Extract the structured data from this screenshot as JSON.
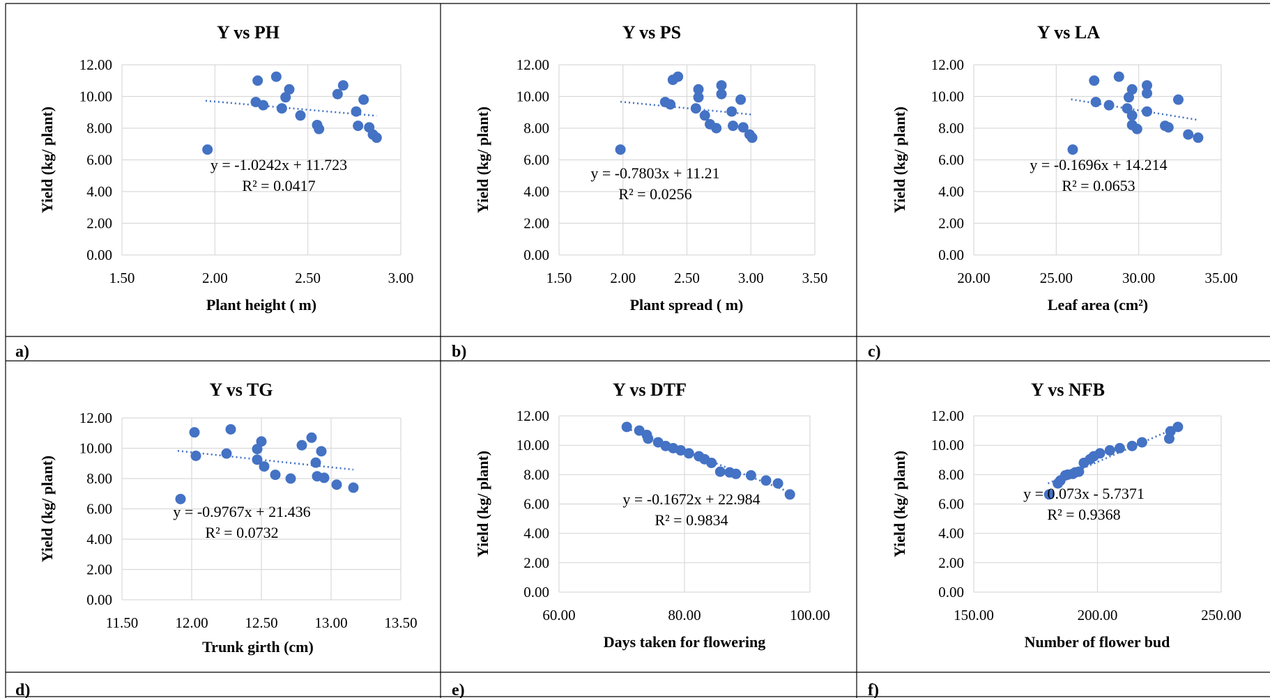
{
  "chart_data": [
    {
      "type": "scatter",
      "panel_label": "a)",
      "title": "Y vs PH",
      "xlabel": "Plant height (  m)",
      "ylabel": "Yield (kg/ plant)",
      "xlim": [
        1.5,
        3.0
      ],
      "ylim": [
        0,
        12
      ],
      "xticks": [
        "1.50",
        "2.00",
        "2.50",
        "3.00"
      ],
      "yticks": [
        "0.00",
        "2.00",
        "4.00",
        "6.00",
        "8.00",
        "10.00",
        "12.00"
      ],
      "points": [
        {
          "x": 1.96,
          "y": 6.65
        },
        {
          "x": 2.22,
          "y": 9.65
        },
        {
          "x": 2.23,
          "y": 11.0
        },
        {
          "x": 2.26,
          "y": 9.45
        },
        {
          "x": 2.33,
          "y": 11.25
        },
        {
          "x": 2.36,
          "y": 9.25
        },
        {
          "x": 2.38,
          "y": 9.95
        },
        {
          "x": 2.4,
          "y": 10.45
        },
        {
          "x": 2.46,
          "y": 8.8
        },
        {
          "x": 2.55,
          "y": 8.2
        },
        {
          "x": 2.56,
          "y": 7.95
        },
        {
          "x": 2.66,
          "y": 10.15
        },
        {
          "x": 2.69,
          "y": 10.7
        },
        {
          "x": 2.76,
          "y": 9.05
        },
        {
          "x": 2.77,
          "y": 8.15
        },
        {
          "x": 2.8,
          "y": 9.8
        },
        {
          "x": 2.83,
          "y": 8.05
        },
        {
          "x": 2.85,
          "y": 7.6
        },
        {
          "x": 2.87,
          "y": 7.4
        }
      ],
      "trendline": {
        "x": [
          1.95,
          2.87
        ],
        "y": [
          9.73,
          8.78
        ]
      },
      "equation": "y = -1.0242x + 11.723",
      "r2_label": "R² = 0.0417"
    },
    {
      "type": "scatter",
      "panel_label": "b)",
      "title": "Y vs PS",
      "xlabel": "Plant spread (  m)",
      "ylabel": "Yield (kg/ plant)",
      "xlim": [
        1.5,
        3.5
      ],
      "ylim": [
        0,
        12
      ],
      "xticks": [
        "1.50",
        "2.00",
        "2.50",
        "3.00",
        "3.50"
      ],
      "yticks": [
        "0.00",
        "2.00",
        "4.00",
        "6.00",
        "8.00",
        "10.00",
        "12.00"
      ],
      "points": [
        {
          "x": 1.98,
          "y": 6.65
        },
        {
          "x": 2.33,
          "y": 9.65
        },
        {
          "x": 2.37,
          "y": 9.5
        },
        {
          "x": 2.39,
          "y": 11.05
        },
        {
          "x": 2.43,
          "y": 11.25
        },
        {
          "x": 2.57,
          "y": 9.25
        },
        {
          "x": 2.59,
          "y": 9.95
        },
        {
          "x": 2.59,
          "y": 10.45
        },
        {
          "x": 2.64,
          "y": 8.8
        },
        {
          "x": 2.68,
          "y": 8.25
        },
        {
          "x": 2.73,
          "y": 8.0
        },
        {
          "x": 2.77,
          "y": 10.15
        },
        {
          "x": 2.77,
          "y": 10.7
        },
        {
          "x": 2.85,
          "y": 9.05
        },
        {
          "x": 2.86,
          "y": 8.15
        },
        {
          "x": 2.92,
          "y": 9.8
        },
        {
          "x": 2.94,
          "y": 8.05
        },
        {
          "x": 2.99,
          "y": 7.6
        },
        {
          "x": 3.01,
          "y": 7.4
        }
      ],
      "trendline": {
        "x": [
          1.98,
          3.02
        ],
        "y": [
          9.67,
          8.85
        ]
      },
      "equation": "y = -0.7803x + 11.21",
      "r2_label": "R² = 0.0256"
    },
    {
      "type": "scatter",
      "panel_label": "c)",
      "title": "Y vs LA",
      "xlabel": "Leaf area (cm²)",
      "ylabel": "Yield (kg/ plant)",
      "xlim": [
        20,
        35
      ],
      "ylim": [
        0,
        12
      ],
      "xticks": [
        "20.00",
        "25.00",
        "30.00",
        "35.00"
      ],
      "yticks": [
        "0.00",
        "2.00",
        "4.00",
        "6.00",
        "8.00",
        "10.00",
        "12.00"
      ],
      "points": [
        {
          "x": 26.0,
          "y": 6.65
        },
        {
          "x": 27.3,
          "y": 11.0
        },
        {
          "x": 27.4,
          "y": 9.65
        },
        {
          "x": 28.2,
          "y": 9.45
        },
        {
          "x": 28.8,
          "y": 11.25
        },
        {
          "x": 29.3,
          "y": 9.25
        },
        {
          "x": 29.4,
          "y": 9.95
        },
        {
          "x": 29.6,
          "y": 10.45
        },
        {
          "x": 29.6,
          "y": 8.8
        },
        {
          "x": 29.6,
          "y": 8.2
        },
        {
          "x": 29.9,
          "y": 7.95
        },
        {
          "x": 30.5,
          "y": 10.2
        },
        {
          "x": 30.5,
          "y": 10.7
        },
        {
          "x": 30.5,
          "y": 9.05
        },
        {
          "x": 31.6,
          "y": 8.15
        },
        {
          "x": 31.8,
          "y": 8.05
        },
        {
          "x": 32.4,
          "y": 9.8
        },
        {
          "x": 33.0,
          "y": 7.6
        },
        {
          "x": 33.6,
          "y": 7.4
        }
      ],
      "trendline": {
        "x": [
          25.9,
          33.6
        ],
        "y": [
          9.82,
          8.52
        ]
      },
      "equation": "y = -0.1696x + 14.214",
      "r2_label": "R² = 0.0653"
    },
    {
      "type": "scatter",
      "panel_label": "d)",
      "title": "Y vs TG",
      "xlabel": "Trunk girth (cm)",
      "ylabel": "Yield (kg/ plant)",
      "xlim": [
        11.5,
        13.5
      ],
      "ylim": [
        0,
        12
      ],
      "xticks": [
        "11.50",
        "12.00",
        "12.50",
        "13.00",
        "13.50"
      ],
      "yticks": [
        "0.00",
        "2.00",
        "4.00",
        "6.00",
        "8.00",
        "10.00",
        "12.00"
      ],
      "points": [
        {
          "x": 11.92,
          "y": 6.65
        },
        {
          "x": 12.02,
          "y": 11.05
        },
        {
          "x": 12.03,
          "y": 9.5
        },
        {
          "x": 12.25,
          "y": 9.65
        },
        {
          "x": 12.28,
          "y": 11.25
        },
        {
          "x": 12.47,
          "y": 9.95
        },
        {
          "x": 12.47,
          "y": 9.25
        },
        {
          "x": 12.5,
          "y": 10.45
        },
        {
          "x": 12.52,
          "y": 8.8
        },
        {
          "x": 12.6,
          "y": 8.25
        },
        {
          "x": 12.71,
          "y": 8.0
        },
        {
          "x": 12.79,
          "y": 10.2
        },
        {
          "x": 12.86,
          "y": 10.7
        },
        {
          "x": 12.89,
          "y": 9.05
        },
        {
          "x": 12.9,
          "y": 8.15
        },
        {
          "x": 12.93,
          "y": 9.8
        },
        {
          "x": 12.95,
          "y": 8.05
        },
        {
          "x": 13.04,
          "y": 7.6
        },
        {
          "x": 13.16,
          "y": 7.4
        }
      ],
      "trendline": {
        "x": [
          11.9,
          13.16
        ],
        "y": [
          9.83,
          8.59
        ]
      },
      "equation": "y = -0.9767x + 21.436",
      "r2_label": "R² = 0.0732"
    },
    {
      "type": "scatter",
      "panel_label": "e)",
      "title": "Y vs DTF",
      "xlabel": "Days taken for flowering",
      "ylabel": "Yield (kg/ plant)",
      "xlim": [
        60,
        100
      ],
      "ylim": [
        0,
        12
      ],
      "xticks": [
        "60.00",
        "80.00",
        "100.00"
      ],
      "yticks": [
        "0.00",
        "2.00",
        "4.00",
        "6.00",
        "8.00",
        "10.00",
        "12.00"
      ],
      "points": [
        {
          "x": 70.8,
          "y": 11.25
        },
        {
          "x": 72.8,
          "y": 11.0
        },
        {
          "x": 74.0,
          "y": 10.7
        },
        {
          "x": 74.2,
          "y": 10.45
        },
        {
          "x": 75.8,
          "y": 10.2
        },
        {
          "x": 77.0,
          "y": 9.95
        },
        {
          "x": 78.2,
          "y": 9.8
        },
        {
          "x": 79.4,
          "y": 9.65
        },
        {
          "x": 80.7,
          "y": 9.45
        },
        {
          "x": 82.3,
          "y": 9.25
        },
        {
          "x": 83.2,
          "y": 9.05
        },
        {
          "x": 84.3,
          "y": 8.8
        },
        {
          "x": 85.7,
          "y": 8.2
        },
        {
          "x": 87.2,
          "y": 8.15
        },
        {
          "x": 88.2,
          "y": 8.05
        },
        {
          "x": 90.6,
          "y": 7.95
        },
        {
          "x": 93.0,
          "y": 7.6
        },
        {
          "x": 94.9,
          "y": 7.4
        },
        {
          "x": 96.8,
          "y": 6.65
        }
      ],
      "trendline": {
        "x": [
          70.8,
          96.8
        ],
        "y": [
          11.15,
          6.8
        ]
      },
      "equation": "y = -0.1672x + 22.984",
      "r2_label": "R² = 0.9834"
    },
    {
      "type": "scatter",
      "panel_label": "f)",
      "title": "Y vs NFB",
      "xlabel": "Number of flower bud",
      "ylabel": "Yield (kg/ plant)",
      "xlim": [
        150,
        250
      ],
      "ylim": [
        0,
        12
      ],
      "xticks": [
        "150.00",
        "200.00",
        "250.00"
      ],
      "yticks": [
        "0.00",
        "2.00",
        "4.00",
        "6.00",
        "8.00",
        "10.00",
        "12.00"
      ],
      "points": [
        {
          "x": 180.5,
          "y": 6.65
        },
        {
          "x": 184.0,
          "y": 7.4
        },
        {
          "x": 185.0,
          "y": 7.6
        },
        {
          "x": 187.0,
          "y": 7.95
        },
        {
          "x": 188.0,
          "y": 8.0
        },
        {
          "x": 190.0,
          "y": 8.05
        },
        {
          "x": 191.0,
          "y": 8.15
        },
        {
          "x": 192.5,
          "y": 8.2
        },
        {
          "x": 194.5,
          "y": 8.8
        },
        {
          "x": 197.0,
          "y": 9.05
        },
        {
          "x": 198.5,
          "y": 9.25
        },
        {
          "x": 201.0,
          "y": 9.45
        },
        {
          "x": 205.0,
          "y": 9.65
        },
        {
          "x": 209.0,
          "y": 9.8
        },
        {
          "x": 214.0,
          "y": 9.95
        },
        {
          "x": 218.0,
          "y": 10.2
        },
        {
          "x": 229.0,
          "y": 10.45
        },
        {
          "x": 229.5,
          "y": 10.95
        },
        {
          "x": 232.5,
          "y": 11.25
        }
      ],
      "trendline": {
        "x": [
          180.0,
          232.5
        ],
        "y": [
          7.4,
          11.24
        ]
      },
      "equation": "y = 0.073x - 5.7371",
      "r2_label": "R² = 0.9368"
    }
  ]
}
